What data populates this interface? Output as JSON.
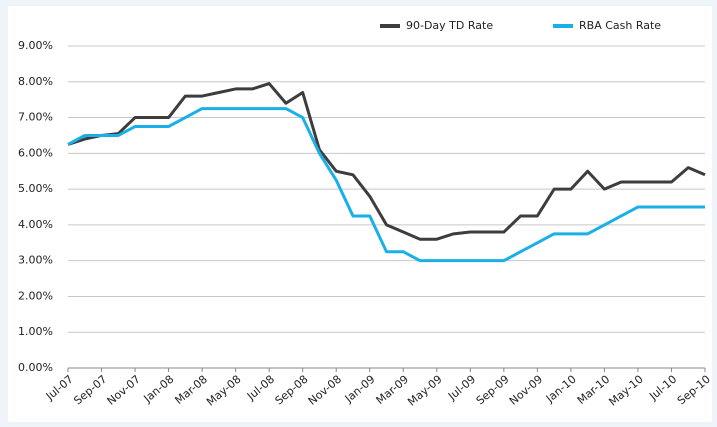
{
  "chart_data": {
    "type": "line",
    "categories": [
      "Jul-07",
      null,
      "Sep-07",
      null,
      "Nov-07",
      null,
      "Jan-08",
      null,
      "Mar-08",
      null,
      "May-08",
      null,
      "Jul-08",
      null,
      "Sep-08",
      null,
      "Nov-08",
      null,
      "Jan-09",
      null,
      "Mar-09",
      null,
      "May-09",
      null,
      "Jul-09",
      null,
      "Sep-09",
      null,
      "Nov-09",
      null,
      "Jan-10",
      null,
      "Mar-10",
      null,
      "May-10",
      null,
      "Jul-10",
      null,
      "Sep-10"
    ],
    "series": [
      {
        "name": "90-Day TD Rate",
        "color": "#3d3d3d",
        "values": [
          6.25,
          6.4,
          6.5,
          6.55,
          7.0,
          7.0,
          7.0,
          7.6,
          7.6,
          7.7,
          7.8,
          7.8,
          7.95,
          7.4,
          7.7,
          6.1,
          5.5,
          5.4,
          4.8,
          4.0,
          3.8,
          3.6,
          3.6,
          3.75,
          3.8,
          3.8,
          3.8,
          4.25,
          4.25,
          5.0,
          5.0,
          5.5,
          5.0,
          5.2,
          5.2,
          5.2,
          5.2,
          5.6,
          5.4
        ]
      },
      {
        "name": "RBA Cash Rate",
        "color": "#19b0e8",
        "values": [
          6.25,
          6.5,
          6.5,
          6.5,
          6.75,
          6.75,
          6.75,
          7.0,
          7.25,
          7.25,
          7.25,
          7.25,
          7.25,
          7.25,
          7.0,
          6.0,
          5.25,
          4.25,
          4.25,
          3.25,
          3.25,
          3.0,
          3.0,
          3.0,
          3.0,
          3.0,
          3.0,
          3.25,
          3.5,
          3.75,
          3.75,
          3.75,
          4.0,
          4.25,
          4.5,
          4.5,
          4.5,
          4.5,
          4.5
        ]
      }
    ],
    "ylim": [
      0,
      9
    ],
    "yticks": [
      {
        "value": 0,
        "label": "0.00%"
      },
      {
        "value": 1,
        "label": "1.00%"
      },
      {
        "value": 2,
        "label": "2.00%"
      },
      {
        "value": 3,
        "label": "3.00%"
      },
      {
        "value": 4,
        "label": "4.00%"
      },
      {
        "value": 5,
        "label": "5.00%"
      },
      {
        "value": 6,
        "label": "6.00%"
      },
      {
        "value": 7,
        "label": "7.00%"
      },
      {
        "value": 8,
        "label": "8.00%"
      },
      {
        "value": 9,
        "label": "9.00%"
      }
    ],
    "grid": true,
    "legend": "top-right"
  }
}
